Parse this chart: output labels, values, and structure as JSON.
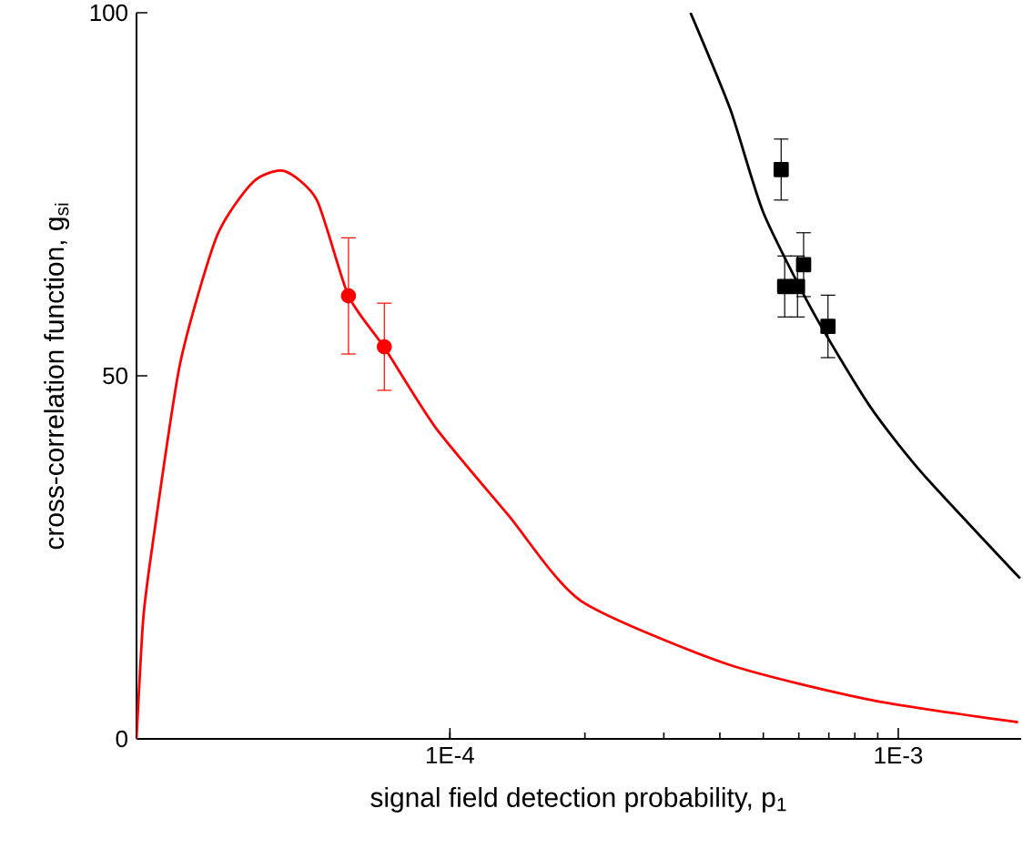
{
  "chart_data": {
    "type": "scatter",
    "xlabel": "signal field detection probability, p$_{1}$",
    "ylabel": "cross-correlation function, g$_{si}$",
    "log": "x",
    "xlim": [
      2e-05,
      0.00188
    ],
    "ylim": [
      0,
      100
    ],
    "xticks": [
      {
        "value": 0.0001,
        "label": "1E-4"
      },
      {
        "value": 0.001,
        "label": "1E-3"
      }
    ],
    "yticks": [
      0,
      50,
      100
    ],
    "series": [
      {
        "type": "line",
        "color": "#ff0000",
        "marker": "none",
        "x": [
          2e-05,
          2.07e-05,
          2.17e-05,
          2.5e-05,
          3.02e-05,
          3.64e-05,
          4.27e-05,
          5.05e-05,
          5.94e-05,
          7.14e-05,
          9.28e-05,
          0.000135,
          0.000196,
          0.000415,
          0.000877,
          0.00185
        ],
        "values": [
          0,
          16.5,
          26.6,
          51.6,
          69.2,
          76.7,
          78.2,
          74.2,
          61,
          53.9,
          42.9,
          30.8,
          19,
          10.3,
          5.3,
          2.3
        ]
      },
      {
        "type": "line",
        "color": "#000000",
        "marker": "none",
        "x": [
          0.000344,
          0.000422,
          0.0005,
          0.000644,
          0.00086,
          0.00113,
          0.00187
        ],
        "values": [
          100,
          86.7,
          72.5,
          58.9,
          46,
          36.6,
          22.1
        ]
      },
      {
        "color": "#ff0000",
        "marker": "circle",
        "x": [
          5.94e-05,
          7.14e-05
        ],
        "values": [
          61,
          54
        ],
        "errors": [
          8,
          6
        ]
      },
      {
        "color": "#000000",
        "marker": "square",
        "x": [
          0.000548,
          0.000558,
          0.000596,
          0.000615,
          0.000697
        ],
        "values": [
          78.4,
          62.3,
          62.3,
          65.3,
          56.8
        ],
        "errors": [
          4.2,
          4.2,
          4.2,
          4.4,
          4.3
        ]
      }
    ]
  }
}
